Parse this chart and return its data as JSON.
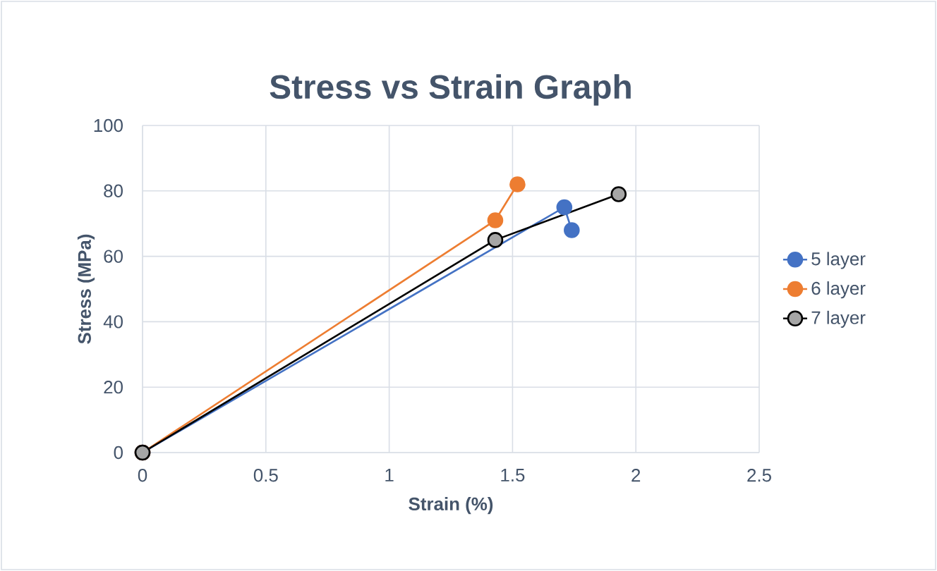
{
  "chart_data": {
    "type": "line",
    "title": "Stress vs Strain Graph",
    "xlabel": "Strain (%)",
    "ylabel": "Stress (MPa)",
    "xlim": [
      0,
      2.5
    ],
    "xticks": [
      0,
      0.5,
      1,
      1.5,
      2,
      2.5
    ],
    "ylim": [
      0,
      100
    ],
    "yticks": [
      0,
      20,
      40,
      60,
      80,
      100
    ],
    "grid": true,
    "legend": "right",
    "marker": "circle",
    "line_style": "solid",
    "series": [
      {
        "name": "5 layer",
        "color": "#4472c4",
        "x": [
          0,
          1.71,
          1.74
        ],
        "values": [
          0,
          75,
          68
        ]
      },
      {
        "name": "6 layer",
        "color": "#ed7d31",
        "x": [
          0,
          1.43,
          1.52
        ],
        "values": [
          0,
          71,
          82
        ]
      },
      {
        "name": "7 layer",
        "color": "#000000",
        "x": [
          0,
          1.43,
          1.93
        ],
        "values": [
          0,
          65,
          79
        ]
      }
    ]
  }
}
